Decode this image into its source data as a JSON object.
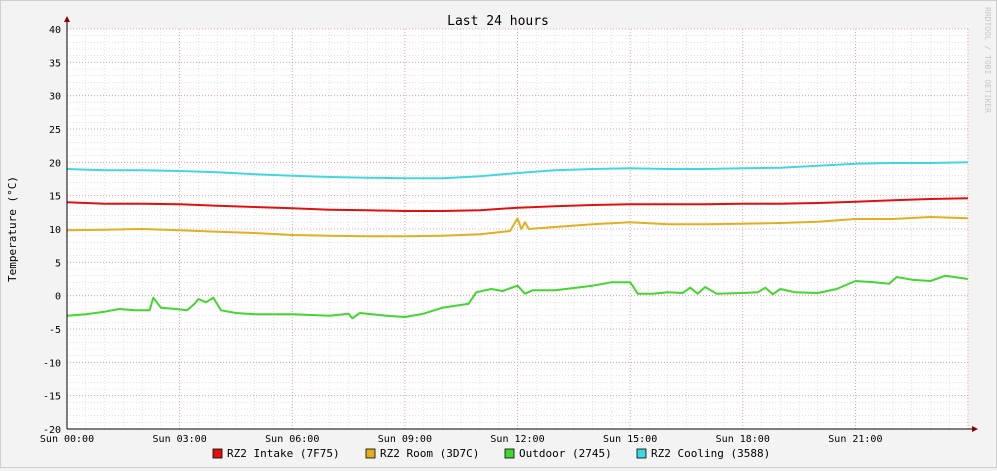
{
  "chart_data": {
    "type": "line",
    "title": "Last 24 hours",
    "ylabel": "Temperature (°C)",
    "xlabel": "",
    "watermark": "RRDTOOL / TOBI OETIKER",
    "ylim": [
      -20,
      40
    ],
    "yticks": [
      "40",
      "35",
      "30",
      "25",
      "20",
      "15",
      "10",
      "5",
      "0",
      "-5",
      "-10",
      "-15",
      "-20"
    ],
    "x_range_hours": [
      0,
      24
    ],
    "xticks": [
      {
        "hour": 0,
        "label": "Sun 00:00"
      },
      {
        "hour": 3,
        "label": "Sun 03:00"
      },
      {
        "hour": 6,
        "label": "Sun 06:00"
      },
      {
        "hour": 9,
        "label": "Sun 09:00"
      },
      {
        "hour": 12,
        "label": "Sun 12:00"
      },
      {
        "hour": 15,
        "label": "Sun 15:00"
      },
      {
        "hour": 18,
        "label": "Sun 18:00"
      },
      {
        "hour": 21,
        "label": "Sun 21:00"
      }
    ],
    "grid": true,
    "legend_position": "bottom",
    "series": [
      {
        "name": "RZ2 Intake (7F75)",
        "color": "#e01010",
        "points": [
          [
            0,
            14.0
          ],
          [
            1,
            13.8
          ],
          [
            2,
            13.8
          ],
          [
            3,
            13.7
          ],
          [
            4,
            13.5
          ],
          [
            5,
            13.3
          ],
          [
            6,
            13.1
          ],
          [
            7,
            12.9
          ],
          [
            8,
            12.8
          ],
          [
            9,
            12.7
          ],
          [
            10,
            12.7
          ],
          [
            11,
            12.8
          ],
          [
            12,
            13.2
          ],
          [
            13,
            13.4
          ],
          [
            14,
            13.6
          ],
          [
            15,
            13.7
          ],
          [
            16,
            13.7
          ],
          [
            17,
            13.7
          ],
          [
            18,
            13.8
          ],
          [
            19,
            13.8
          ],
          [
            20,
            13.9
          ],
          [
            21,
            14.1
          ],
          [
            22,
            14.3
          ],
          [
            23,
            14.5
          ],
          [
            24,
            14.6
          ]
        ]
      },
      {
        "name": "RZ2 Room (3D7C)",
        "color": "#e0b020",
        "points": [
          [
            0,
            9.8
          ],
          [
            1,
            9.9
          ],
          [
            2,
            10.0
          ],
          [
            3,
            9.8
          ],
          [
            4,
            9.6
          ],
          [
            5,
            9.4
          ],
          [
            6,
            9.1
          ],
          [
            7,
            9.0
          ],
          [
            8,
            8.9
          ],
          [
            9,
            8.9
          ],
          [
            10,
            9.0
          ],
          [
            11,
            9.2
          ],
          [
            11.8,
            9.7
          ],
          [
            12.0,
            11.6
          ],
          [
            12.1,
            10.0
          ],
          [
            12.2,
            11.0
          ],
          [
            12.3,
            10.0
          ],
          [
            13,
            10.3
          ],
          [
            14,
            10.7
          ],
          [
            15,
            11.0
          ],
          [
            16,
            10.7
          ],
          [
            17,
            10.7
          ],
          [
            18,
            10.8
          ],
          [
            19,
            10.9
          ],
          [
            20,
            11.1
          ],
          [
            21,
            11.5
          ],
          [
            22,
            11.5
          ],
          [
            23,
            11.8
          ],
          [
            24,
            11.6
          ]
        ]
      },
      {
        "name": "Outdoor (2745)",
        "color": "#40d830",
        "points": [
          [
            0,
            -3.0
          ],
          [
            0.5,
            -2.8
          ],
          [
            1.0,
            -2.4
          ],
          [
            1.4,
            -2.0
          ],
          [
            1.8,
            -2.2
          ],
          [
            2.2,
            -2.2
          ],
          [
            2.3,
            -0.3
          ],
          [
            2.5,
            -1.8
          ],
          [
            2.9,
            -2.0
          ],
          [
            3.2,
            -2.2
          ],
          [
            3.4,
            -1.2
          ],
          [
            3.5,
            -0.5
          ],
          [
            3.7,
            -1.0
          ],
          [
            3.9,
            -0.3
          ],
          [
            4.1,
            -2.2
          ],
          [
            4.5,
            -2.6
          ],
          [
            5,
            -2.8
          ],
          [
            6,
            -2.8
          ],
          [
            7,
            -3.0
          ],
          [
            7.5,
            -2.7
          ],
          [
            7.6,
            -3.4
          ],
          [
            7.8,
            -2.6
          ],
          [
            8.5,
            -3.0
          ],
          [
            9,
            -3.2
          ],
          [
            9.5,
            -2.7
          ],
          [
            10,
            -1.8
          ],
          [
            10.7,
            -1.2
          ],
          [
            10.9,
            0.5
          ],
          [
            11.3,
            1.0
          ],
          [
            11.6,
            0.7
          ],
          [
            12.0,
            1.5
          ],
          [
            12.2,
            0.3
          ],
          [
            12.4,
            0.8
          ],
          [
            13,
            0.8
          ],
          [
            14,
            1.5
          ],
          [
            14.5,
            2.0
          ],
          [
            15,
            2.0
          ],
          [
            15.1,
            1.2
          ],
          [
            15.2,
            0.3
          ],
          [
            15.6,
            0.3
          ],
          [
            16,
            0.5
          ],
          [
            16.4,
            0.4
          ],
          [
            16.6,
            1.2
          ],
          [
            16.8,
            0.3
          ],
          [
            17,
            1.3
          ],
          [
            17.3,
            0.3
          ],
          [
            18,
            0.4
          ],
          [
            18.4,
            0.5
          ],
          [
            18.6,
            1.2
          ],
          [
            18.8,
            0.2
          ],
          [
            19.0,
            1.0
          ],
          [
            19.4,
            0.5
          ],
          [
            20,
            0.4
          ],
          [
            20.5,
            1.0
          ],
          [
            21,
            2.2
          ],
          [
            21.5,
            2.0
          ],
          [
            21.9,
            1.8
          ],
          [
            22.1,
            2.8
          ],
          [
            22.5,
            2.4
          ],
          [
            23,
            2.2
          ],
          [
            23.4,
            3.0
          ],
          [
            24,
            2.5
          ]
        ]
      },
      {
        "name": "RZ2 Cooling (3588)",
        "color": "#40d8e0",
        "points": [
          [
            0,
            19.0
          ],
          [
            1,
            18.8
          ],
          [
            2,
            18.8
          ],
          [
            3,
            18.7
          ],
          [
            4,
            18.5
          ],
          [
            5,
            18.2
          ],
          [
            6,
            18.0
          ],
          [
            7,
            17.8
          ],
          [
            8,
            17.7
          ],
          [
            9,
            17.6
          ],
          [
            10,
            17.6
          ],
          [
            11,
            17.9
          ],
          [
            12,
            18.4
          ],
          [
            13,
            18.8
          ],
          [
            14,
            19.0
          ],
          [
            15,
            19.1
          ],
          [
            16,
            19.0
          ],
          [
            17,
            19.0
          ],
          [
            18,
            19.1
          ],
          [
            19,
            19.2
          ],
          [
            20,
            19.5
          ],
          [
            21,
            19.8
          ],
          [
            22,
            19.9
          ],
          [
            23,
            19.9
          ],
          [
            24,
            20.0
          ]
        ]
      }
    ]
  }
}
